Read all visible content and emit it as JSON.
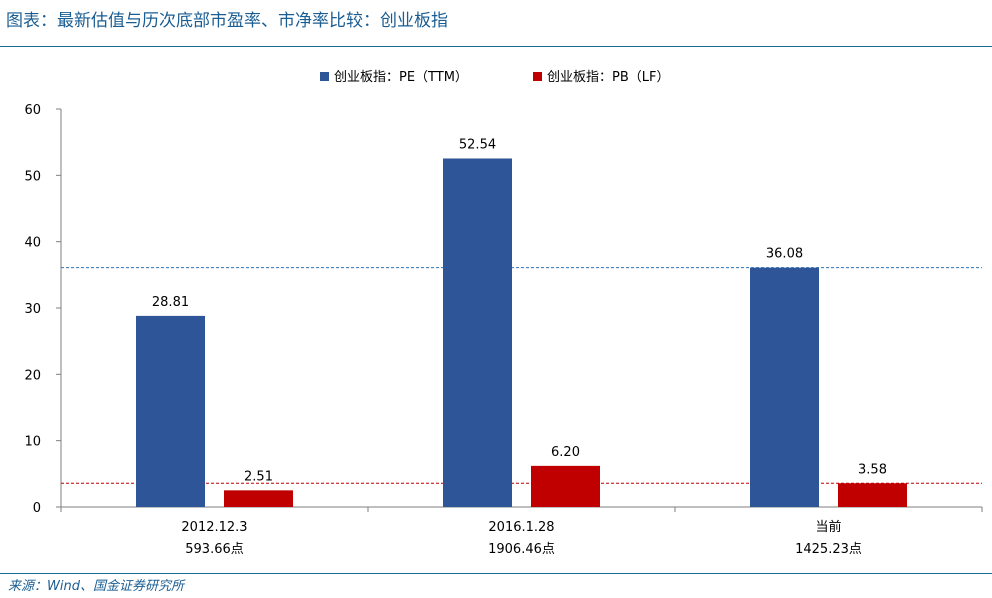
{
  "header": {
    "title": "图表：最新估值与历次底部市盈率、市净率比较：创业板指"
  },
  "footer": {
    "source": "来源：Wind、国金证券研究所"
  },
  "colors": {
    "pe": "#2e5597",
    "pb": "#c00000",
    "title": "#1a5d92",
    "rule": "#1a6a96",
    "axis": "#7f7f7f",
    "pe_ref_line": "#2e75b6",
    "pb_ref_line": "#c00000"
  },
  "chart_data": {
    "type": "bar",
    "categories": [
      [
        "2012.12.3",
        "593.66点"
      ],
      [
        "2016.1.28",
        "1906.46点"
      ],
      [
        "当前",
        "1425.23点"
      ]
    ],
    "series": [
      {
        "name": "创业板指：PE（TTM）",
        "values": [
          28.81,
          52.54,
          36.08
        ],
        "labels": [
          "28.81",
          "52.54",
          "36.08"
        ]
      },
      {
        "name": "创业板指：PB（LF）",
        "values": [
          2.51,
          6.2,
          3.58
        ],
        "labels": [
          "2.51",
          "6.20",
          "3.58"
        ]
      }
    ],
    "ylim": [
      0,
      60
    ],
    "yticks": [
      "0",
      "10",
      "20",
      "30",
      "40",
      "50",
      "60"
    ],
    "reference_lines": [
      {
        "series": "创业板指：PE（TTM）",
        "value": 36.08,
        "style": "dashed"
      },
      {
        "series": "创业板指：PB（LF）",
        "value": 3.58,
        "style": "dashed"
      }
    ],
    "legend_position": "top-center",
    "grid": false
  }
}
